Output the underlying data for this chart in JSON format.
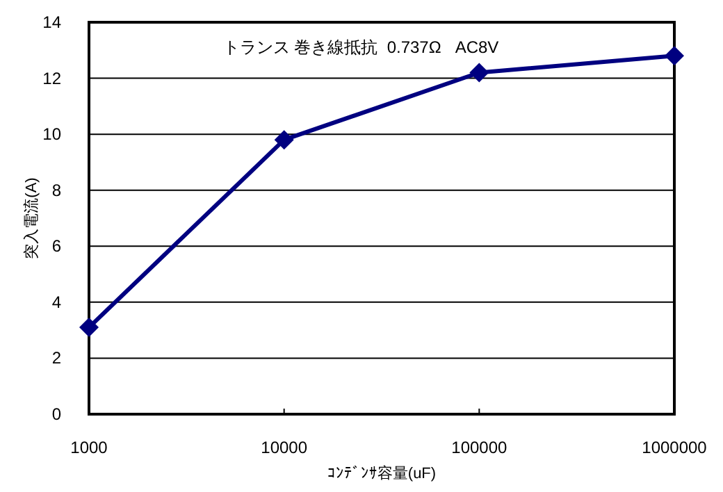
{
  "chart_data": {
    "type": "line",
    "xlabel": "ｺﾝﾃﾞﾝｻ容量(uF)",
    "ylabel": "突入電流(A)",
    "annotations": [
      "トランス 巻き線抵抗  0.737Ω   AC8V"
    ],
    "x": [
      1000,
      10000,
      100000,
      1000000
    ],
    "series": [
      {
        "color": "#000080",
        "values": [
          3.1,
          9.8,
          12.2,
          12.8
        ]
      }
    ],
    "log": "x",
    "xlim": [
      1000,
      1000000
    ],
    "xticks": [
      1000,
      10000,
      100000,
      1000000
    ],
    "ylim": [
      0,
      14
    ],
    "yticks": [
      0,
      2,
      4,
      6,
      8,
      10,
      12,
      14
    ],
    "grid": "y",
    "marker": "diamond",
    "line_style": "solid"
  }
}
